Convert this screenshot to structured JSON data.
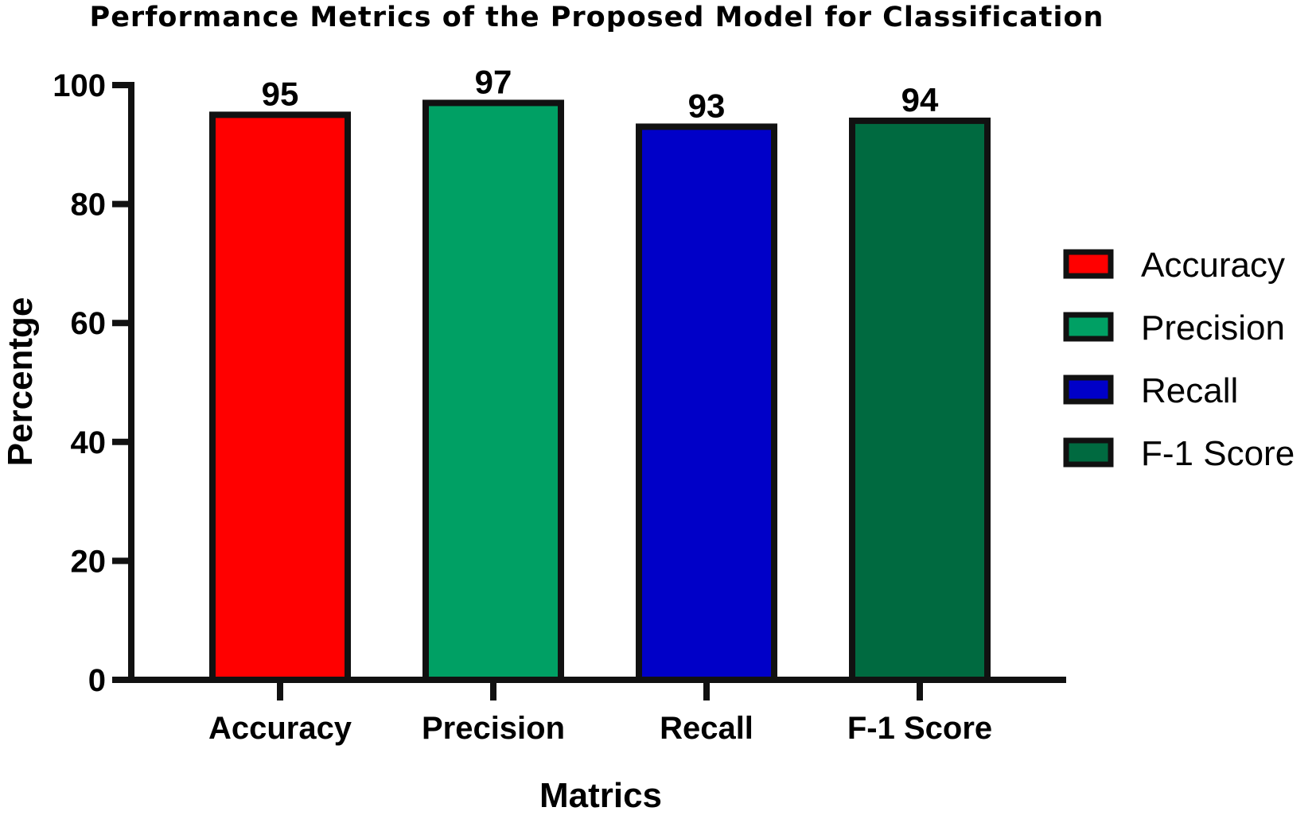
{
  "chart_data": {
    "type": "bar",
    "title": "Performance Metrics of the Proposed Model for Classification",
    "xlabel": "Matrics",
    "ylabel": "Percentge",
    "categories": [
      "Accuracy",
      "Precision",
      "Recall",
      "F-1 Score"
    ],
    "values": [
      95,
      97,
      93,
      94
    ],
    "data_labels": [
      "95",
      "97",
      "93",
      "94"
    ],
    "colors": [
      "#ff0000",
      "#00a064",
      "#0000c8",
      "#006a40"
    ],
    "ylim": [
      0,
      100
    ],
    "yticks": [
      0,
      20,
      40,
      60,
      80,
      100
    ],
    "grid": false,
    "legend": {
      "position": "right",
      "entries": [
        "Accuracy",
        "Precision",
        "Recall",
        "F-1 Score"
      ]
    }
  }
}
